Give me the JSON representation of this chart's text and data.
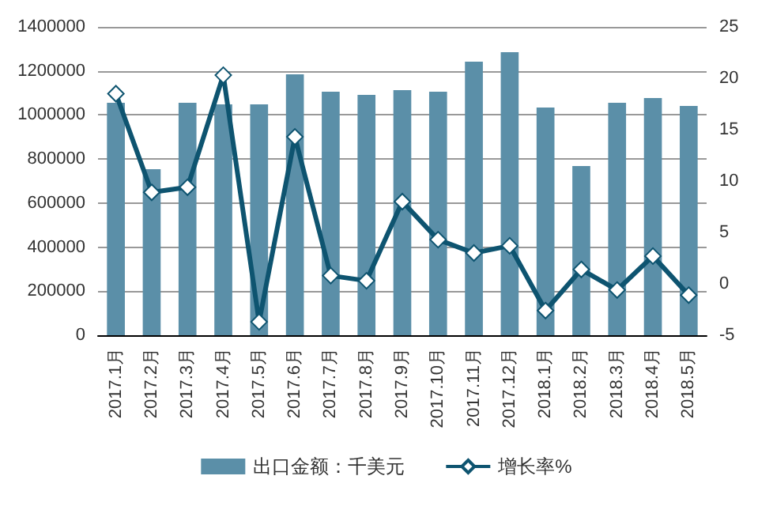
{
  "chart_data": {
    "type": "bar",
    "categories": [
      "2017.1月",
      "2017.2月",
      "2017.3月",
      "2017.4月",
      "2017.5月",
      "2017.6月",
      "2017.7月",
      "2017.8月",
      "2017.9月",
      "2017.10月",
      "2017.11月",
      "2017.12月",
      "2018.1月",
      "2018.2月",
      "2018.3月",
      "2018.4月",
      "2018.5月"
    ],
    "series": [
      {
        "name": "出口金额：千美元",
        "color": "#5b8fa8",
        "values": [
          1055000,
          754000,
          1055000,
          1048000,
          1048000,
          1185000,
          1106000,
          1091000,
          1113000,
          1106000,
          1242000,
          1285000,
          1034000,
          768000,
          1055000,
          1077000,
          1041000
        ]
      },
      {
        "name": "增长率%",
        "type": "line",
        "axis": "y2",
        "color": "#0e5470",
        "marker": "diamond",
        "values": [
          18.5,
          8.9,
          9.4,
          20.3,
          -3.7,
          14.3,
          0.8,
          0.3,
          8.0,
          4.3,
          3.0,
          3.7,
          -2.6,
          1.4,
          -0.6,
          2.7,
          -1.1
        ]
      }
    ],
    "ylim": [
      0,
      1400000
    ],
    "yticks": [
      0,
      200000,
      400000,
      600000,
      800000,
      1000000,
      1200000,
      1400000
    ],
    "y2lim": [
      -5,
      25
    ],
    "y2ticks": [
      -5,
      0,
      5,
      10,
      15,
      20,
      25
    ],
    "grid": "y",
    "legend": "bottom"
  }
}
